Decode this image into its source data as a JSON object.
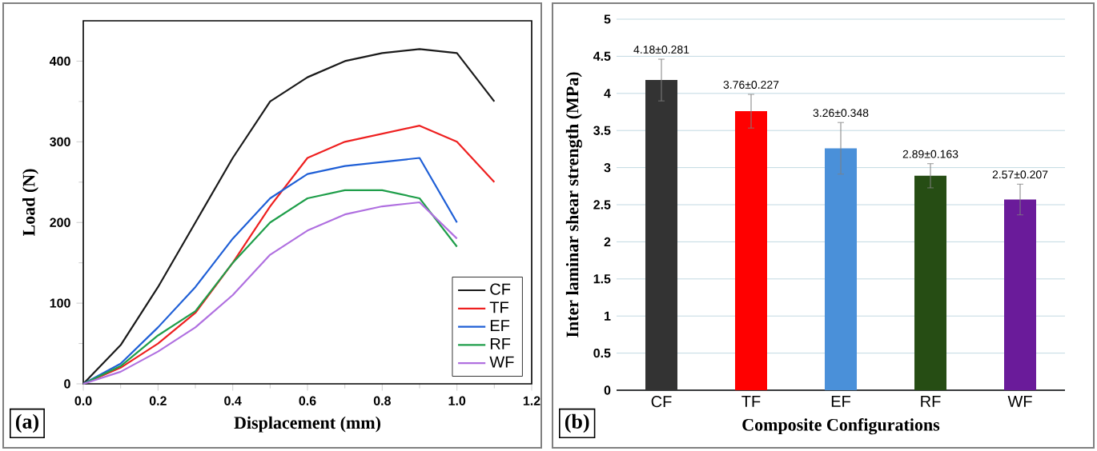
{
  "chart_data": [
    {
      "type": "line",
      "xlabel": "Displacement (mm)",
      "ylabel": "Load (N)",
      "xlim": [
        0,
        1.2
      ],
      "ylim": [
        0,
        450
      ],
      "xticks": [
        {
          "value": 0,
          "label": "0.0"
        },
        0.2,
        0.4,
        0.6,
        0.8,
        {
          "value": 1,
          "label": "1.0"
        },
        1.2
      ],
      "yticks": [
        0,
        100,
        200,
        300,
        400
      ],
      "legend": "bottom right",
      "grid": false,
      "annotations": [
        "(a)"
      ],
      "series": [
        {
          "name": "CF",
          "color": "#1a1a1a",
          "x": [
            0,
            0.1,
            0.2,
            0.3,
            0.4,
            0.5,
            0.6,
            0.7,
            0.8,
            0.9,
            1.0,
            1.1
          ],
          "values": [
            0,
            48,
            120,
            200,
            280,
            350,
            380,
            400,
            410,
            415,
            410,
            350
          ]
        },
        {
          "name": "TF",
          "color": "#ee2020",
          "x": [
            0,
            0.1,
            0.2,
            0.3,
            0.4,
            0.5,
            0.6,
            0.7,
            0.8,
            0.9,
            1.0,
            1.1
          ],
          "values": [
            0,
            20,
            50,
            88,
            150,
            220,
            280,
            300,
            310,
            320,
            300,
            250
          ]
        },
        {
          "name": "EF",
          "color": "#1f5fd6",
          "x": [
            0,
            0.1,
            0.2,
            0.3,
            0.4,
            0.5,
            0.6,
            0.7,
            0.8,
            0.9,
            1.0
          ],
          "values": [
            0,
            25,
            70,
            120,
            180,
            230,
            260,
            270,
            275,
            280,
            200
          ]
        },
        {
          "name": "RF",
          "color": "#1f9e4a",
          "x": [
            0,
            0.1,
            0.2,
            0.3,
            0.4,
            0.5,
            0.6,
            0.7,
            0.8,
            0.9,
            1.0
          ],
          "values": [
            0,
            22,
            60,
            90,
            150,
            200,
            230,
            240,
            240,
            230,
            170
          ]
        },
        {
          "name": "WF",
          "color": "#b070e0",
          "x": [
            0,
            0.1,
            0.2,
            0.3,
            0.4,
            0.5,
            0.6,
            0.7,
            0.8,
            0.9,
            1.0
          ],
          "values": [
            0,
            15,
            40,
            70,
            110,
            160,
            190,
            210,
            220,
            225,
            180
          ]
        }
      ]
    },
    {
      "type": "bar",
      "xlabel": "Composite Configurations",
      "ylabel": "Inter laminar shear strength (MPa)",
      "ylim": [
        0,
        5
      ],
      "yticks": [
        0,
        0.5,
        1,
        1.5,
        2,
        2.5,
        3,
        3.5,
        4,
        4.5,
        5
      ],
      "grid": "y",
      "annotations": [
        "(b)"
      ],
      "categories": [
        "CF",
        "TF",
        "EF",
        "RF",
        "WF"
      ],
      "values": [
        4.18,
        3.76,
        3.26,
        2.89,
        2.57
      ],
      "errors": [
        0.281,
        0.227,
        0.348,
        0.163,
        0.207
      ],
      "value_labels": [
        "4.18±0.281",
        "3.76±0.227",
        "3.26±0.348",
        "2.89±0.163",
        "2.57±0.207"
      ],
      "colors": [
        "#333333",
        "#ff0000",
        "#4a90d9",
        "#264d14",
        "#6a1b9a"
      ]
    }
  ]
}
